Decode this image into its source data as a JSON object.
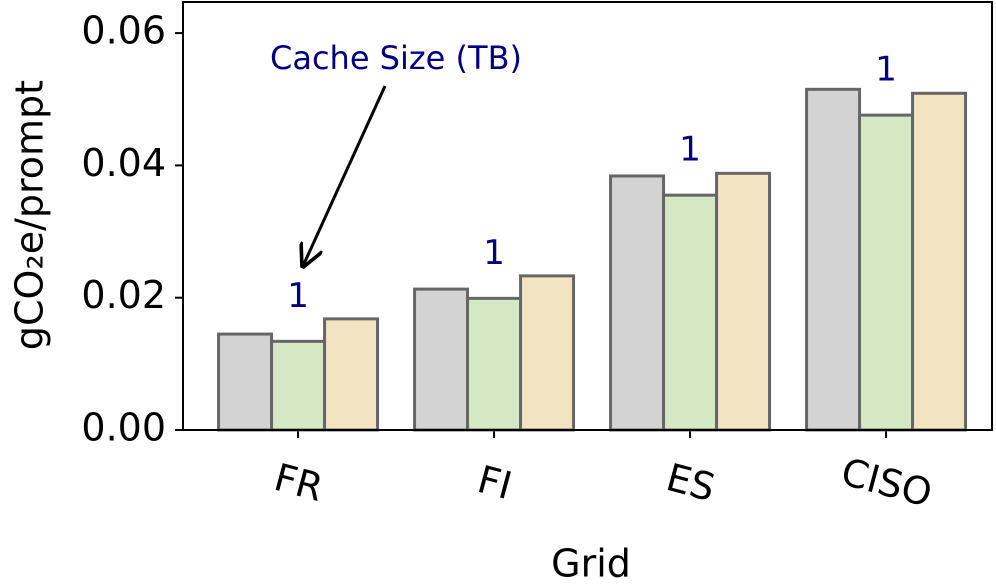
{
  "chart_data": {
    "type": "bar",
    "ylabel": "gCO₂e/prompt",
    "xlabel": "Grid",
    "categories": [
      "FR",
      "FI",
      "ES",
      "CISO"
    ],
    "series": [
      {
        "color": "#d3d3d3",
        "values": [
          0.0145,
          0.0213,
          0.0384,
          0.0515
        ]
      },
      {
        "color": "#d5e8c4",
        "values": [
          0.0134,
          0.0199,
          0.0355,
          0.0476
        ]
      },
      {
        "color": "#f2e4c0",
        "values": [
          0.0168,
          0.0233,
          0.0388,
          0.0509
        ]
      }
    ],
    "bar_labels": [
      1,
      1,
      1,
      1
    ],
    "annotation": "Cache Size (TB)",
    "ylim": [
      0,
      0.0647
    ],
    "yticks": [
      {
        "value": 0,
        "label": "0.00"
      },
      0.02,
      0.04,
      0.06
    ],
    "grid": false
  }
}
